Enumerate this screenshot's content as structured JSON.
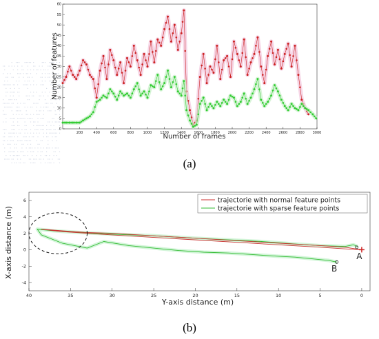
{
  "chart_data": [
    {
      "type": "scatter",
      "panel_label": "(a)",
      "title": "",
      "xlabel": "Number of frames",
      "ylabel": "Number of features",
      "xlim": [
        0,
        3000
      ],
      "ylim": [
        0,
        60
      ],
      "xticks": [
        200,
        400,
        600,
        800,
        1000,
        1200,
        1400,
        1600,
        1800,
        2000,
        2200,
        2400,
        2600,
        2800,
        3000
      ],
      "yticks": [
        0,
        5,
        10,
        15,
        20,
        25,
        30,
        35,
        40,
        45,
        50,
        55,
        60
      ],
      "grid": false,
      "series": [
        {
          "color": "#cc2222",
          "x": [
            0,
            40,
            80,
            120,
            160,
            200,
            240,
            280,
            320,
            360,
            400,
            440,
            480,
            520,
            560,
            600,
            640,
            680,
            720,
            760,
            800,
            840,
            880,
            920,
            960,
            1000,
            1040,
            1080,
            1120,
            1160,
            1200,
            1240,
            1280,
            1320,
            1360,
            1400,
            1430,
            1460,
            1500,
            1540,
            1580,
            1620,
            1660,
            1700,
            1740,
            1780,
            1820,
            1860,
            1900,
            1940,
            1980,
            2020,
            2060,
            2100,
            2140,
            2180,
            2220,
            2260,
            2300,
            2340,
            2380,
            2420,
            2460,
            2500,
            2540,
            2580,
            2620,
            2660,
            2700,
            2740,
            2780,
            2820,
            2860,
            2900
          ],
          "y": [
            22,
            25,
            30,
            26,
            24,
            28,
            33,
            31,
            26,
            24,
            15,
            28,
            35,
            24,
            38,
            33,
            26,
            32,
            22,
            34,
            30,
            40,
            33,
            26,
            36,
            30,
            42,
            32,
            43,
            40,
            48,
            54,
            42,
            50,
            38,
            46,
            57,
            18,
            9,
            2,
            4,
            25,
            36,
            22,
            30,
            27,
            40,
            24,
            33,
            35,
            25,
            42,
            36,
            30,
            43,
            26,
            32,
            36,
            44,
            30,
            22,
            35,
            42,
            31,
            38,
            29,
            36,
            41,
            30,
            40,
            26,
            14,
            10,
            7
          ]
        },
        {
          "color": "#33cc33",
          "x": [
            0,
            40,
            80,
            120,
            160,
            200,
            240,
            280,
            320,
            360,
            400,
            440,
            480,
            520,
            560,
            600,
            640,
            680,
            720,
            760,
            800,
            840,
            880,
            920,
            960,
            1000,
            1040,
            1080,
            1120,
            1160,
            1200,
            1240,
            1280,
            1320,
            1360,
            1400,
            1430,
            1460,
            1500,
            1540,
            1580,
            1620,
            1660,
            1700,
            1740,
            1780,
            1820,
            1860,
            1900,
            1940,
            1980,
            2020,
            2060,
            2100,
            2140,
            2180,
            2220,
            2260,
            2300,
            2340,
            2380,
            2420,
            2460,
            2500,
            2540,
            2580,
            2620,
            2660,
            2700,
            2740,
            2780,
            2820,
            2860,
            2900,
            2950,
            2990
          ],
          "y": [
            3,
            3,
            3,
            3,
            3,
            3,
            4,
            5,
            6,
            8,
            13,
            14,
            16,
            15,
            19,
            17,
            14,
            18,
            16,
            17,
            15,
            19,
            22,
            16,
            18,
            15,
            21,
            20,
            26,
            19,
            22,
            28,
            20,
            25,
            18,
            16,
            23,
            9,
            4,
            1,
            2,
            12,
            15,
            9,
            12,
            10,
            13,
            11,
            14,
            12,
            16,
            15,
            11,
            13,
            17,
            12,
            15,
            19,
            24,
            14,
            11,
            13,
            16,
            21,
            18,
            14,
            11,
            9,
            12,
            10,
            9,
            12,
            10,
            9,
            7,
            5
          ]
        }
      ]
    },
    {
      "type": "line",
      "panel_label": "(b)",
      "title": "",
      "xlabel": "Y-axis distance (m)",
      "ylabel": "X-axis distance (m)",
      "xlim": [
        40,
        -1
      ],
      "ylim": [
        -5,
        7
      ],
      "xticks": [
        40,
        35,
        30,
        25,
        20,
        15,
        10,
        5,
        0
      ],
      "yticks": [
        -4,
        -2,
        0,
        2,
        4,
        6
      ],
      "grid": false,
      "legend_position": "top-right",
      "series": [
        {
          "name": "trajectorie with normal feature points",
          "color": "#cc3333",
          "x": [
            0,
            2,
            5,
            10,
            15,
            20,
            25,
            30,
            33,
            36,
            38.5,
            36,
            33,
            30,
            25,
            20,
            15,
            10,
            5,
            2,
            0
          ],
          "y": [
            0,
            0.3,
            0.5,
            0.8,
            1.1,
            1.4,
            1.7,
            2.0,
            2.1,
            2.3,
            2.5,
            2.2,
            2.0,
            1.8,
            1.5,
            1.2,
            0.9,
            0.6,
            0.3,
            0.1,
            0
          ]
        },
        {
          "name": "trajectorie with sparse feature points",
          "color": "#33bb33",
          "x": [
            0.5,
            1,
            2,
            5,
            8,
            12,
            16,
            20,
            25,
            30,
            34,
            37,
            39,
            38.5,
            36,
            33,
            31,
            28,
            25,
            22,
            19,
            16,
            13,
            10,
            8,
            6,
            4,
            3
          ],
          "y": [
            0.4,
            0.6,
            0.4,
            0.5,
            0.7,
            1.0,
            1.2,
            1.4,
            1.7,
            1.9,
            2.1,
            2.3,
            2.5,
            1.8,
            0.8,
            0.2,
            1.0,
            0.5,
            0.2,
            -0.1,
            -0.3,
            -0.4,
            -0.6,
            -0.8,
            -0.9,
            -1.1,
            -1.3,
            -1.5
          ]
        }
      ],
      "annotations": [
        {
          "text": "A",
          "x": 0.3,
          "y": -0.8
        },
        {
          "text": "B",
          "x": 3.3,
          "y": -2.3
        }
      ],
      "region_ellipse": {
        "cx": 36.5,
        "cy": 2.0,
        "rx": 3.5,
        "ry": 2.5
      }
    }
  ]
}
